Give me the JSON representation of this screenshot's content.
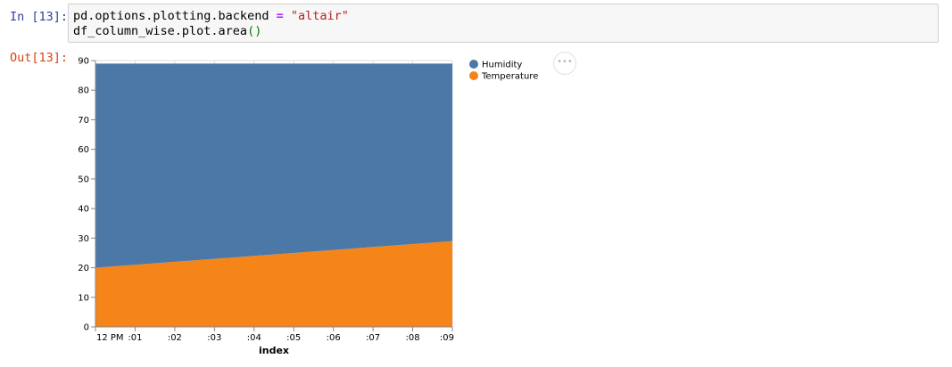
{
  "cell": {
    "in_prompt": "In [13]:",
    "out_prompt": "Out[13]:",
    "code": {
      "line1_a": "pd.options.plotting.backend ",
      "line1_op": "=",
      "line1_sp": " ",
      "line1_str": "\"altair\"",
      "line2_a": "df_column_wise.plot.area",
      "line2_paren": "()"
    }
  },
  "chart_actions": {
    "icon": "ellipsis-icon",
    "glyph": "•••"
  },
  "colors": {
    "humidity": "#4c78a8",
    "temperature": "#f58518"
  },
  "chart_data": {
    "type": "area",
    "stacked": true,
    "xlabel": "index",
    "ylabel": "",
    "ylim": [
      0,
      90
    ],
    "yticks": [
      0,
      10,
      20,
      30,
      40,
      50,
      60,
      70,
      80,
      90
    ],
    "x_minutes": [
      0,
      1,
      2,
      3,
      4,
      5,
      6,
      7,
      8,
      9
    ],
    "x_tick_labels": [
      "12 PM",
      ":01",
      ":02",
      ":03",
      ":04",
      ":05",
      ":06",
      ":07",
      ":08",
      ":09"
    ],
    "legend_position": "top-right",
    "series": [
      {
        "name": "Temperature",
        "values": [
          20,
          21,
          22,
          23,
          24,
          25,
          26,
          27,
          28,
          29
        ],
        "color": "#f58518"
      },
      {
        "name": "Humidity",
        "values": [
          69,
          68,
          67,
          66,
          65,
          64,
          63,
          62,
          61,
          60
        ],
        "color": "#4c78a8"
      }
    ],
    "legend": [
      {
        "name": "Humidity",
        "color": "#4c78a8"
      },
      {
        "name": "Temperature",
        "color": "#f58518"
      }
    ]
  }
}
